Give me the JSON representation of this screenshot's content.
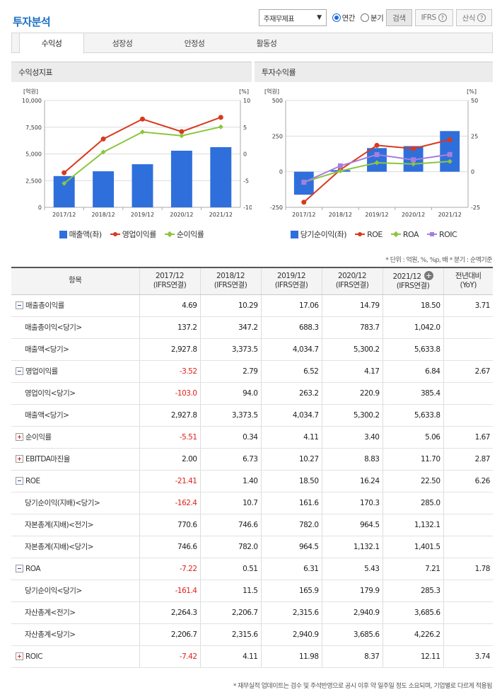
{
  "title": "투자분석",
  "controls": {
    "select_value": "주재무제표",
    "radio_annual": "연간",
    "radio_quarter": "분기",
    "search_label": "검색",
    "ifrs_label": "IFRS",
    "formula_label": "산식",
    "help_symbol": "?"
  },
  "tabs": [
    "수익성",
    "성장성",
    "안정성",
    "활동성"
  ],
  "chart_data": [
    {
      "type": "bar+line",
      "title": "수익성지표",
      "left_unit": "[억원]",
      "right_unit": "[%]",
      "left_ticks": [
        "10,000",
        "7,500",
        "5,000",
        "2,500",
        "0"
      ],
      "right_ticks": [
        "10",
        "5",
        "0",
        "-5",
        "-10"
      ],
      "ylim_left": [
        0,
        10000
      ],
      "ylim_right": [
        -10,
        10
      ],
      "categories": [
        "2017/12",
        "2018/12",
        "2019/12",
        "2020/12",
        "2021/12"
      ],
      "bars": {
        "name": "매출액(좌)",
        "values": [
          2927.8,
          3373.5,
          4034.7,
          5300.2,
          5633.8
        ],
        "color": "#2f6fdb"
      },
      "series": [
        {
          "name": "영업이익률",
          "values": [
            -3.52,
            2.79,
            6.52,
            4.17,
            6.84
          ],
          "color": "#d9391c",
          "marker": "circle"
        },
        {
          "name": "순이익률",
          "values": [
            -5.51,
            0.34,
            4.11,
            3.4,
            5.06
          ],
          "color": "#8cc63f",
          "marker": "diamond"
        }
      ]
    },
    {
      "type": "bar+line",
      "title": "투자수익률",
      "left_unit": "[억원]",
      "right_unit": "[%]",
      "left_ticks": [
        "500",
        "250",
        "0",
        "-250"
      ],
      "right_ticks": [
        "50",
        "25",
        "0",
        "-25"
      ],
      "ylim_left": [
        -250,
        500
      ],
      "ylim_right": [
        -25,
        50
      ],
      "categories": [
        "2017/12",
        "2018/12",
        "2019/12",
        "2020/12",
        "2021/12"
      ],
      "bars": {
        "name": "당기순이익(좌)",
        "values": [
          -161.4,
          11.5,
          165.9,
          179.9,
          285.3
        ],
        "color": "#2f6fdb"
      },
      "series": [
        {
          "name": "ROE",
          "values": [
            -21.41,
            1.4,
            18.5,
            16.24,
            22.5
          ],
          "color": "#d9391c",
          "marker": "circle"
        },
        {
          "name": "ROA",
          "values": [
            -7.22,
            0.51,
            6.31,
            5.43,
            7.21
          ],
          "color": "#8cc63f",
          "marker": "diamond"
        },
        {
          "name": "ROIC",
          "values": [
            -7.42,
            4.11,
            11.98,
            8.37,
            12.11
          ],
          "color": "#a57fde",
          "marker": "square"
        }
      ]
    }
  ],
  "note": "* 단위 : 억원, %, %p, 배    * 분기 : 순액기준",
  "table": {
    "header_item": "항목",
    "columns": [
      {
        "l1": "2017/12",
        "l2": "(IFRS연결)"
      },
      {
        "l1": "2018/12",
        "l2": "(IFRS연결)"
      },
      {
        "l1": "2019/12",
        "l2": "(IFRS연결)"
      },
      {
        "l1": "2020/12",
        "l2": "(IFRS연결)"
      },
      {
        "l1": "2021/12",
        "l2": "(IFRS연결)"
      }
    ],
    "yoy_l1": "전년대비",
    "yoy_l2": "(YoY)",
    "expand_symbol": "+",
    "rows": [
      {
        "label": "매출총이익률",
        "toggle": "minus",
        "vals": [
          "4.69",
          "10.29",
          "17.06",
          "14.79",
          "18.50"
        ],
        "yoy": "3.71"
      },
      {
        "label": "매출총이익<당기>",
        "vals": [
          "137.2",
          "347.2",
          "688.3",
          "783.7",
          "1,042.0"
        ],
        "yoy": ""
      },
      {
        "label": "매출액<당기>",
        "vals": [
          "2,927.8",
          "3,373.5",
          "4,034.7",
          "5,300.2",
          "5,633.8"
        ],
        "yoy": ""
      },
      {
        "label": "영업이익률",
        "toggle": "minus",
        "vals": [
          "-3.52",
          "2.79",
          "6.52",
          "4.17",
          "6.84"
        ],
        "yoy": "2.67"
      },
      {
        "label": "영업이익<당기>",
        "vals": [
          "-103.0",
          "94.0",
          "263.2",
          "220.9",
          "385.4"
        ],
        "yoy": ""
      },
      {
        "label": "매출액<당기>",
        "vals": [
          "2,927.8",
          "3,373.5",
          "4,034.7",
          "5,300.2",
          "5,633.8"
        ],
        "yoy": ""
      },
      {
        "label": "순이익률",
        "toggle": "plus",
        "vals": [
          "-5.51",
          "0.34",
          "4.11",
          "3.40",
          "5.06"
        ],
        "yoy": "1.67"
      },
      {
        "label": "EBITDA마진율",
        "toggle": "plus",
        "vals": [
          "2.00",
          "6.73",
          "10.27",
          "8.83",
          "11.70"
        ],
        "yoy": "2.87"
      },
      {
        "label": "ROE",
        "toggle": "minus",
        "vals": [
          "-21.41",
          "1.40",
          "18.50",
          "16.24",
          "22.50"
        ],
        "yoy": "6.26"
      },
      {
        "label": "당기순이익(지배)<당기>",
        "vals": [
          "-162.4",
          "10.7",
          "161.6",
          "170.3",
          "285.0"
        ],
        "yoy": ""
      },
      {
        "label": "자본총계(지배)<전기>",
        "vals": [
          "770.6",
          "746.6",
          "782.0",
          "964.5",
          "1,132.1"
        ],
        "yoy": ""
      },
      {
        "label": "자본총계(지배)<당기>",
        "vals": [
          "746.6",
          "782.0",
          "964.5",
          "1,132.1",
          "1,401.5"
        ],
        "yoy": ""
      },
      {
        "label": "ROA",
        "toggle": "minus",
        "vals": [
          "-7.22",
          "0.51",
          "6.31",
          "5.43",
          "7.21"
        ],
        "yoy": "1.78"
      },
      {
        "label": "당기순이익<당기>",
        "vals": [
          "-161.4",
          "11.5",
          "165.9",
          "179.9",
          "285.3"
        ],
        "yoy": ""
      },
      {
        "label": "자산총계<전기>",
        "vals": [
          "2,264.3",
          "2,206.7",
          "2,315.6",
          "2,940.9",
          "3,685.6"
        ],
        "yoy": ""
      },
      {
        "label": "자산총계<당기>",
        "vals": [
          "2,206.7",
          "2,315.6",
          "2,940.9",
          "3,685.6",
          "4,226.2"
        ],
        "yoy": ""
      },
      {
        "label": "ROIC",
        "toggle": "plus",
        "vals": [
          "-7.42",
          "4.11",
          "11.98",
          "8.37",
          "12.11"
        ],
        "yoy": "3.74"
      }
    ]
  },
  "footer": "* 재무실적 업데이트는 검수 및 주석반영으로 공시 이후 약 일주일 정도 소요되며, 기업별로 다르게 적용됨"
}
